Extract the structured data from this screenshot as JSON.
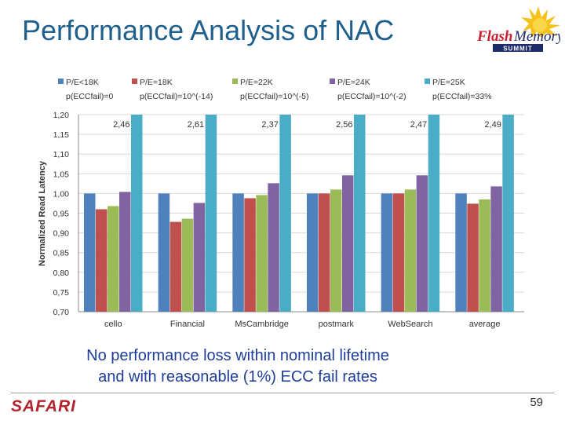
{
  "slide": {
    "title": "Performance Analysis of NAC",
    "caption_line1": "No performance loss within nominal lifetime",
    "caption_line2": "and with reasonable (1%) ECC fail rates",
    "footer_brand": "SAFARI",
    "page_number": "59",
    "logo": {
      "word1": "Flash",
      "word2": "Memory",
      "word3": "SUMMIT"
    }
  },
  "chart_data": {
    "type": "bar",
    "title": "",
    "xlabel": "",
    "ylabel": "Normalized Read Latency",
    "ylim": [
      0.7,
      1.2
    ],
    "yticks": [
      "0,70",
      "0,75",
      "0,80",
      "0,85",
      "0,90",
      "0,95",
      "1,00",
      "1,05",
      "1,10",
      "1,15",
      "1,20"
    ],
    "categories": [
      "cello",
      "Financial",
      "MsCambridge",
      "postmark",
      "WebSearch",
      "average"
    ],
    "series": [
      {
        "name": "P/E<18K",
        "name2": "p(ECCfail)=0",
        "color": "#4f81bd",
        "values": [
          1.0,
          1.0,
          1.0,
          1.0,
          1.0,
          1.0
        ]
      },
      {
        "name": "P/E=18K",
        "name2": "p(ECCfail)=10^(-14)",
        "color": "#c0504d",
        "values": [
          0.96,
          0.928,
          0.988,
          1.0,
          1.0,
          0.974
        ]
      },
      {
        "name": "P/E=22K",
        "name2": "p(ECCfail)=10^(-5)",
        "color": "#9bbb59",
        "values": [
          0.968,
          0.936,
          0.996,
          1.01,
          1.01,
          0.985
        ]
      },
      {
        "name": "P/E=24K",
        "name2": "p(ECCfail)=10^(-2)",
        "color": "#8064a2",
        "values": [
          1.004,
          0.976,
          1.026,
          1.046,
          1.046,
          1.018
        ]
      },
      {
        "name": "P/E=25K",
        "name2": "p(ECCfail)=33%",
        "color": "#4bacc6",
        "values": [
          2.46,
          2.61,
          2.37,
          2.56,
          2.47,
          2.49
        ],
        "value_labels": [
          "2,46",
          "2,61",
          "2,37",
          "2,56",
          "2,47",
          "2,49"
        ]
      }
    ]
  }
}
